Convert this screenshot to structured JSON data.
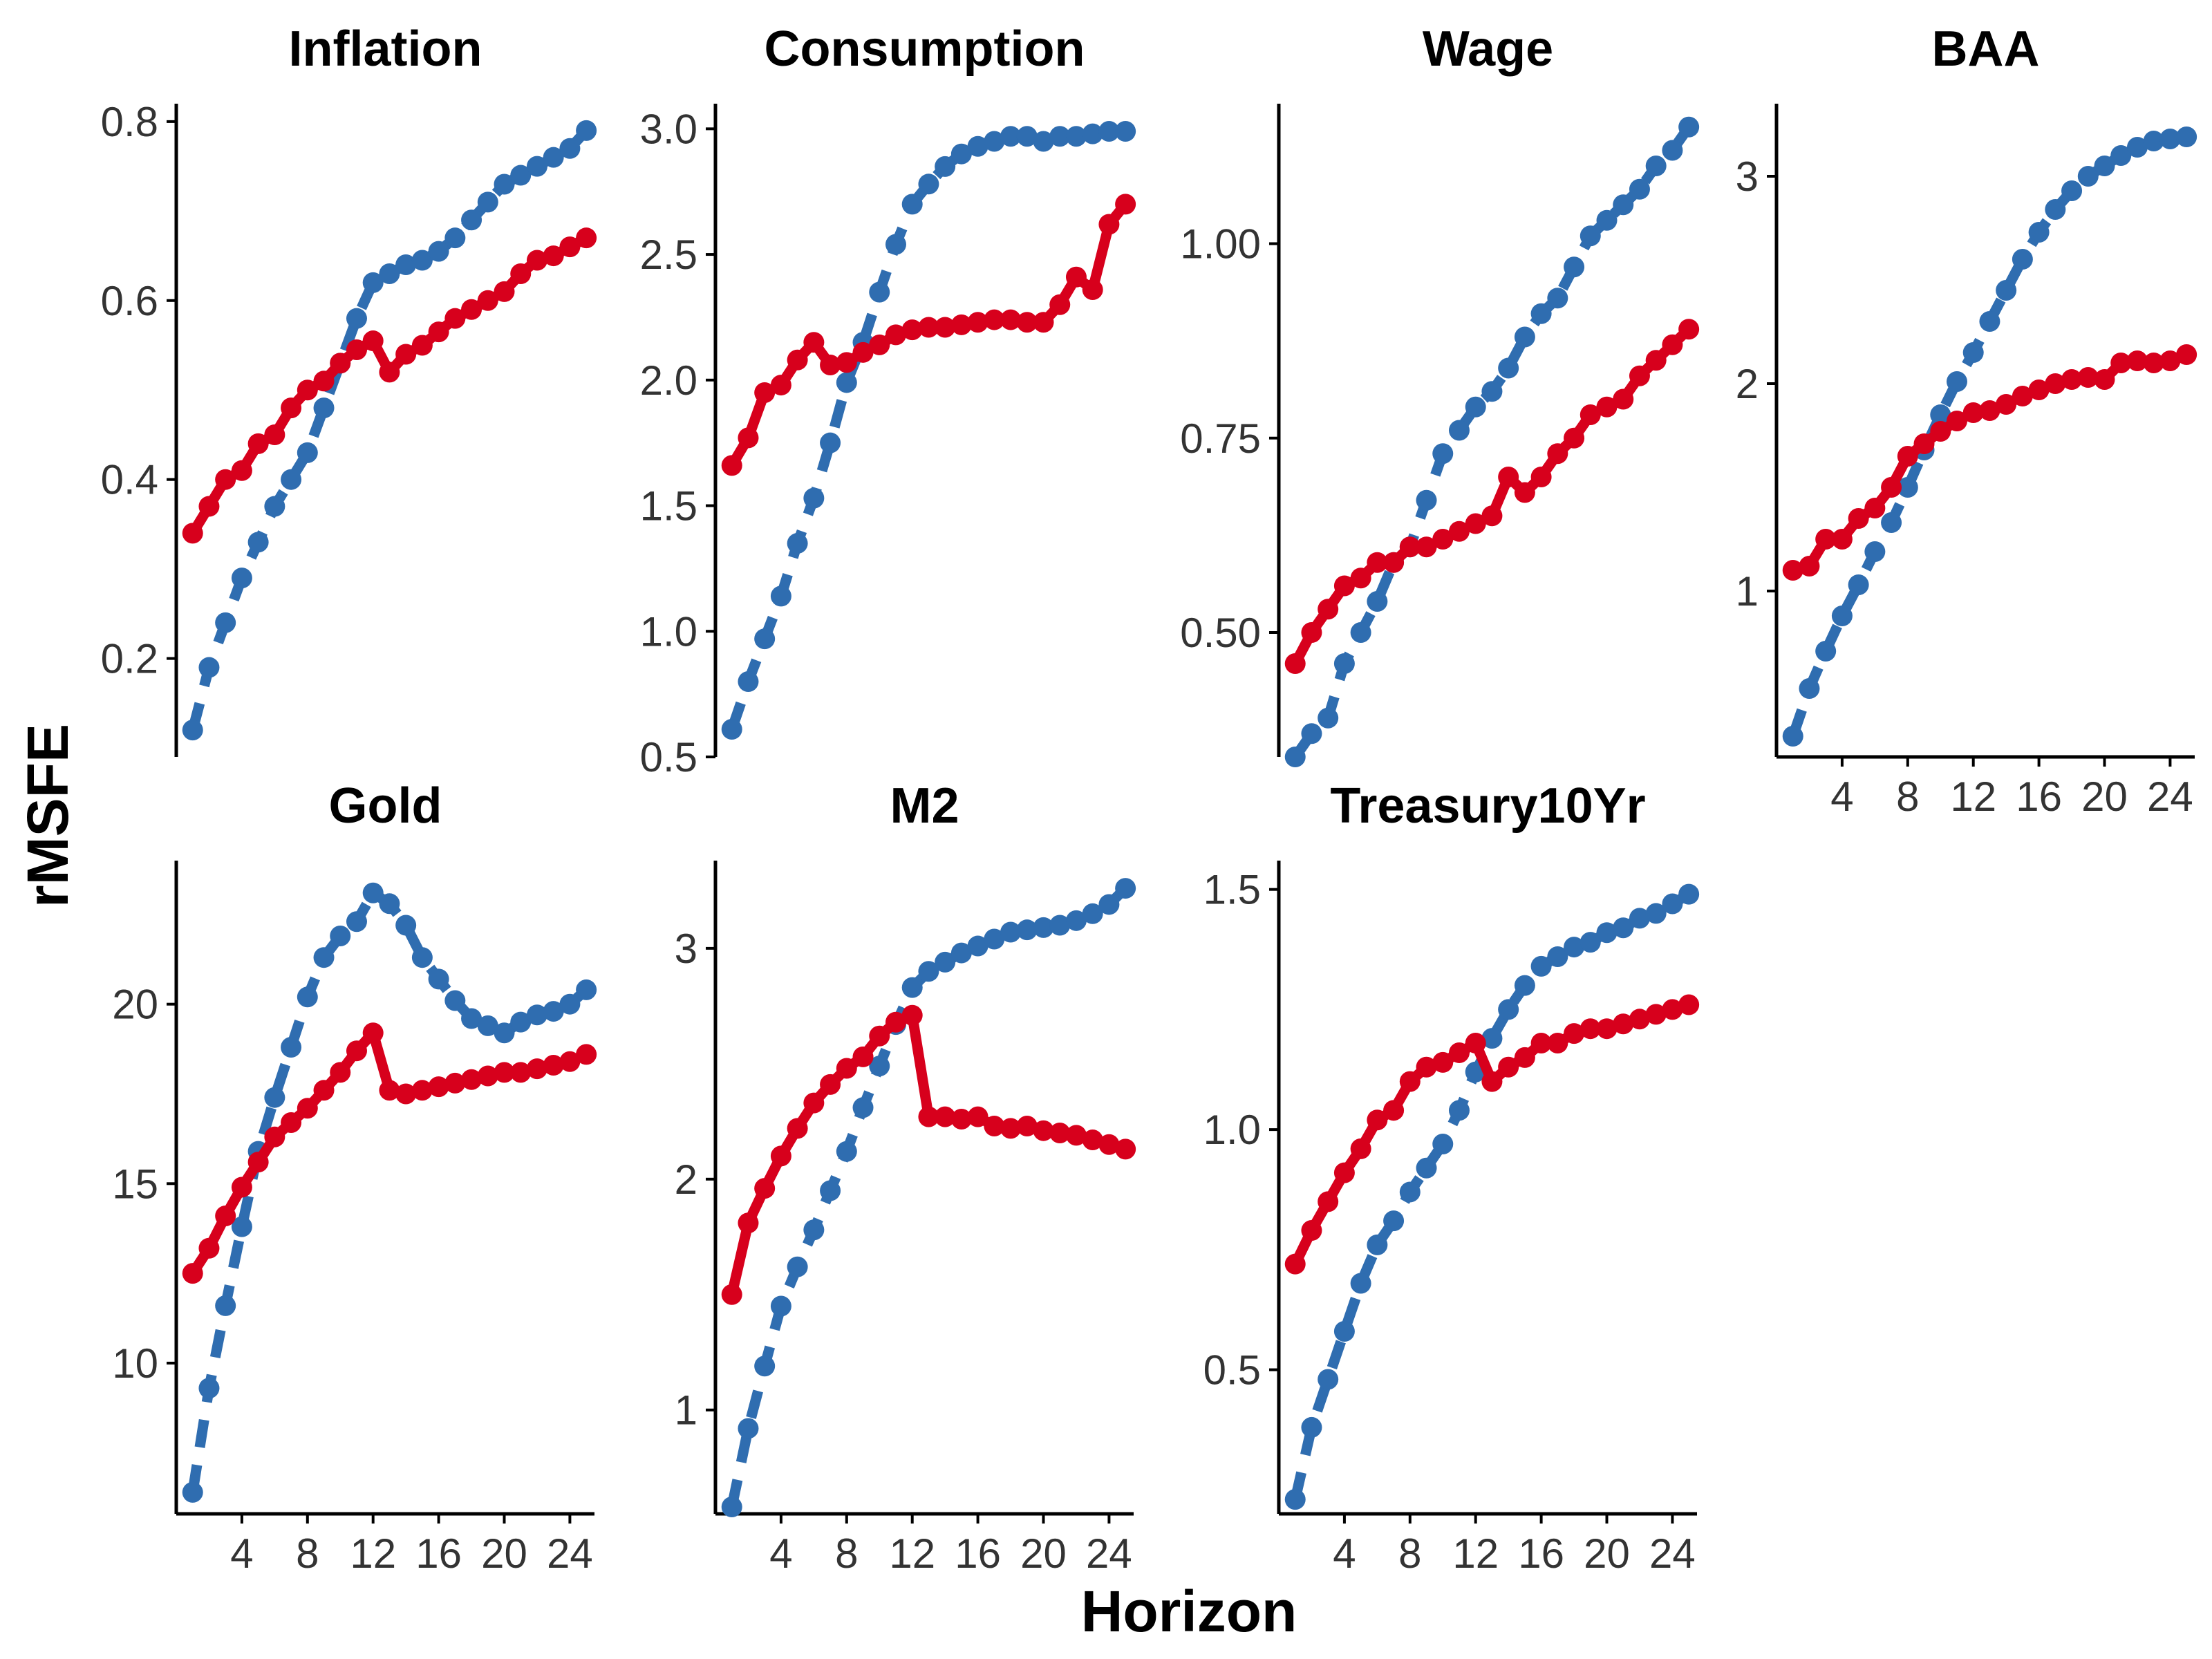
{
  "figure": {
    "xlabel": "Horizon",
    "ylabel": "rMSFE"
  },
  "colors": {
    "blue": "#2f6db0",
    "red": "#d7001c"
  },
  "chart_data": [
    {
      "type": "line",
      "title": "Inflation",
      "x": [
        1,
        2,
        3,
        4,
        5,
        6,
        7,
        8,
        9,
        10,
        11,
        12,
        13,
        14,
        15,
        16,
        17,
        18,
        19,
        20,
        21,
        22,
        23,
        24,
        25
      ],
      "xlim": [
        0,
        25.5
      ],
      "xticks": [
        4,
        8,
        12,
        16,
        20,
        24
      ],
      "show_xaxis": false,
      "ylim": [
        0.09,
        0.82
      ],
      "yticks": [
        0.2,
        0.4,
        0.6,
        0.8
      ],
      "yticklabels": [
        "0.2",
        "0.4",
        "0.6",
        "0.8"
      ],
      "series": [
        {
          "style": "dashed",
          "color": "#2f6db0",
          "values": [
            0.12,
            0.19,
            0.24,
            0.29,
            0.33,
            0.37,
            0.4,
            0.43,
            0.48,
            0.53,
            0.58,
            0.62,
            0.63,
            0.64,
            0.645,
            0.655,
            0.67,
            0.69,
            0.71,
            0.73,
            0.74,
            0.75,
            0.76,
            0.77,
            0.79
          ]
        },
        {
          "style": "solid",
          "color": "#d7001c",
          "values": [
            0.34,
            0.37,
            0.4,
            0.41,
            0.44,
            0.45,
            0.48,
            0.5,
            0.51,
            0.53,
            0.545,
            0.555,
            0.52,
            0.54,
            0.55,
            0.565,
            0.58,
            0.59,
            0.6,
            0.61,
            0.63,
            0.645,
            0.65,
            0.66,
            0.67
          ]
        }
      ]
    },
    {
      "type": "line",
      "title": "Consumption",
      "x": [
        1,
        2,
        3,
        4,
        5,
        6,
        7,
        8,
        9,
        10,
        11,
        12,
        13,
        14,
        15,
        16,
        17,
        18,
        19,
        20,
        21,
        22,
        23,
        24,
        25
      ],
      "xlim": [
        0,
        25.5
      ],
      "xticks": [
        4,
        8,
        12,
        16,
        20,
        24
      ],
      "show_xaxis": false,
      "ylim": [
        0.5,
        3.1
      ],
      "yticks": [
        0.5,
        1.0,
        1.5,
        2.0,
        2.5,
        3.0
      ],
      "yticklabels": [
        "0.5",
        "1.0",
        "1.5",
        "2.0",
        "2.5",
        "3.0"
      ],
      "series": [
        {
          "style": "dashed",
          "color": "#2f6db0",
          "values": [
            0.61,
            0.8,
            0.97,
            1.14,
            1.35,
            1.53,
            1.75,
            1.99,
            2.15,
            2.35,
            2.54,
            2.7,
            2.78,
            2.85,
            2.9,
            2.93,
            2.95,
            2.97,
            2.97,
            2.95,
            2.97,
            2.97,
            2.98,
            2.99,
            2.99
          ]
        },
        {
          "style": "solid",
          "color": "#d7001c",
          "values": [
            1.66,
            1.77,
            1.95,
            1.98,
            2.08,
            2.15,
            2.06,
            2.07,
            2.11,
            2.14,
            2.18,
            2.2,
            2.21,
            2.21,
            2.22,
            2.23,
            2.24,
            2.24,
            2.23,
            2.23,
            2.3,
            2.41,
            2.36,
            2.62,
            2.7
          ]
        }
      ]
    },
    {
      "type": "line",
      "title": "Wage",
      "x": [
        1,
        2,
        3,
        4,
        5,
        6,
        7,
        8,
        9,
        10,
        11,
        12,
        13,
        14,
        15,
        16,
        17,
        18,
        19,
        20,
        21,
        22,
        23,
        24,
        25
      ],
      "xlim": [
        0,
        25.5
      ],
      "xticks": [
        4,
        8,
        12,
        16,
        20,
        24
      ],
      "show_xaxis": false,
      "ylim": [
        0.34,
        1.18
      ],
      "yticks": [
        0.5,
        0.75,
        1.0
      ],
      "yticklabels": [
        "0.50",
        "0.75",
        "1.00"
      ],
      "series": [
        {
          "style": "dashed",
          "color": "#2f6db0",
          "values": [
            0.34,
            0.37,
            0.39,
            0.46,
            0.5,
            0.54,
            0.59,
            0.61,
            0.67,
            0.73,
            0.76,
            0.79,
            0.81,
            0.84,
            0.88,
            0.91,
            0.93,
            0.97,
            1.01,
            1.03,
            1.05,
            1.07,
            1.1,
            1.12,
            1.15
          ]
        },
        {
          "style": "solid",
          "color": "#d7001c",
          "values": [
            0.46,
            0.5,
            0.53,
            0.56,
            0.57,
            0.59,
            0.59,
            0.61,
            0.61,
            0.62,
            0.63,
            0.64,
            0.65,
            0.7,
            0.68,
            0.7,
            0.73,
            0.75,
            0.78,
            0.79,
            0.8,
            0.83,
            0.85,
            0.87,
            0.89
          ]
        }
      ]
    },
    {
      "type": "line",
      "title": "BAA",
      "x": [
        1,
        2,
        3,
        4,
        5,
        6,
        7,
        8,
        9,
        10,
        11,
        12,
        13,
        14,
        15,
        16,
        17,
        18,
        19,
        20,
        21,
        22,
        23,
        24,
        25
      ],
      "xlim": [
        0,
        25.5
      ],
      "xticks": [
        4,
        8,
        12,
        16,
        20,
        24
      ],
      "xticklabels": [
        "4",
        "8",
        "12",
        "16",
        "20",
        "24"
      ],
      "show_xaxis": true,
      "ylim": [
        0.2,
        3.35
      ],
      "yticks": [
        1,
        2,
        3
      ],
      "yticklabels": [
        "1",
        "2",
        "3"
      ],
      "series": [
        {
          "style": "dashed",
          "color": "#2f6db0",
          "values": [
            0.3,
            0.53,
            0.71,
            0.88,
            1.03,
            1.19,
            1.33,
            1.5,
            1.68,
            1.85,
            2.01,
            2.15,
            2.3,
            2.45,
            2.6,
            2.73,
            2.84,
            2.93,
            3.0,
            3.05,
            3.1,
            3.14,
            3.17,
            3.18,
            3.19
          ]
        },
        {
          "style": "solid",
          "color": "#d7001c",
          "values": [
            1.1,
            1.12,
            1.25,
            1.25,
            1.35,
            1.4,
            1.5,
            1.65,
            1.71,
            1.77,
            1.82,
            1.86,
            1.87,
            1.9,
            1.94,
            1.97,
            2.0,
            2.02,
            2.03,
            2.02,
            2.1,
            2.11,
            2.1,
            2.11,
            2.14
          ]
        }
      ]
    },
    {
      "type": "line",
      "title": "Gold",
      "x": [
        1,
        2,
        3,
        4,
        5,
        6,
        7,
        8,
        9,
        10,
        11,
        12,
        13,
        14,
        15,
        16,
        17,
        18,
        19,
        20,
        21,
        22,
        23,
        24,
        25
      ],
      "xlim": [
        0,
        25.5
      ],
      "xticks": [
        4,
        8,
        12,
        16,
        20,
        24
      ],
      "xticklabels": [
        "4",
        "8",
        "12",
        "16",
        "20",
        "24"
      ],
      "show_xaxis": true,
      "ylim": [
        5.8,
        24.0
      ],
      "yticks": [
        10,
        15,
        20
      ],
      "yticklabels": [
        "10",
        "15",
        "20"
      ],
      "series": [
        {
          "style": "dashed",
          "color": "#2f6db0",
          "values": [
            6.4,
            9.3,
            11.6,
            13.8,
            15.9,
            17.4,
            18.8,
            20.2,
            21.3,
            21.9,
            22.3,
            23.1,
            22.8,
            22.2,
            21.3,
            20.7,
            20.1,
            19.6,
            19.4,
            19.2,
            19.5,
            19.7,
            19.8,
            20.0,
            20.4
          ]
        },
        {
          "style": "solid",
          "color": "#d7001c",
          "values": [
            12.5,
            13.2,
            14.1,
            14.9,
            15.6,
            16.3,
            16.7,
            17.1,
            17.6,
            18.1,
            18.7,
            19.2,
            17.6,
            17.5,
            17.6,
            17.7,
            17.8,
            17.9,
            18.0,
            18.1,
            18.1,
            18.2,
            18.3,
            18.4,
            18.6
          ]
        }
      ]
    },
    {
      "type": "line",
      "title": "M2",
      "x": [
        1,
        2,
        3,
        4,
        5,
        6,
        7,
        8,
        9,
        10,
        11,
        12,
        13,
        14,
        15,
        16,
        17,
        18,
        19,
        20,
        21,
        22,
        23,
        24,
        25
      ],
      "xlim": [
        0,
        25.5
      ],
      "xticks": [
        4,
        8,
        12,
        16,
        20,
        24
      ],
      "xticklabels": [
        "4",
        "8",
        "12",
        "16",
        "20",
        "24"
      ],
      "show_xaxis": true,
      "ylim": [
        0.55,
        3.38
      ],
      "yticks": [
        1,
        2,
        3
      ],
      "yticklabels": [
        "1",
        "2",
        "3"
      ],
      "series": [
        {
          "style": "dashed",
          "color": "#2f6db0",
          "values": [
            0.58,
            0.92,
            1.19,
            1.45,
            1.62,
            1.78,
            1.95,
            2.12,
            2.31,
            2.49,
            2.67,
            2.83,
            2.9,
            2.94,
            2.98,
            3.01,
            3.04,
            3.07,
            3.08,
            3.09,
            3.1,
            3.12,
            3.15,
            3.19,
            3.26
          ]
        },
        {
          "style": "solid",
          "color": "#d7001c",
          "values": [
            1.5,
            1.81,
            1.96,
            2.1,
            2.22,
            2.33,
            2.41,
            2.48,
            2.53,
            2.62,
            2.68,
            2.71,
            2.27,
            2.27,
            2.26,
            2.27,
            2.23,
            2.22,
            2.23,
            2.21,
            2.2,
            2.19,
            2.17,
            2.15,
            2.13
          ]
        }
      ]
    },
    {
      "type": "line",
      "title": "Treasury10Yr",
      "x": [
        1,
        2,
        3,
        4,
        5,
        6,
        7,
        8,
        9,
        10,
        11,
        12,
        13,
        14,
        15,
        16,
        17,
        18,
        19,
        20,
        21,
        22,
        23,
        24,
        25
      ],
      "xlim": [
        0,
        25.5
      ],
      "xticks": [
        4,
        8,
        12,
        16,
        20,
        24
      ],
      "xticklabels": [
        "4",
        "8",
        "12",
        "16",
        "20",
        "24"
      ],
      "show_xaxis": true,
      "ylim": [
        0.2,
        1.56
      ],
      "yticks": [
        0.5,
        1.0,
        1.5
      ],
      "yticklabels": [
        "0.5",
        "1.0",
        "1.5"
      ],
      "series": [
        {
          "style": "dashed",
          "color": "#2f6db0",
          "values": [
            0.23,
            0.38,
            0.48,
            0.58,
            0.68,
            0.76,
            0.81,
            0.87,
            0.92,
            0.97,
            1.04,
            1.12,
            1.19,
            1.25,
            1.3,
            1.34,
            1.36,
            1.38,
            1.39,
            1.41,
            1.42,
            1.44,
            1.45,
            1.47,
            1.49
          ]
        },
        {
          "style": "solid",
          "color": "#d7001c",
          "values": [
            0.72,
            0.79,
            0.85,
            0.91,
            0.96,
            1.02,
            1.04,
            1.1,
            1.13,
            1.14,
            1.16,
            1.18,
            1.1,
            1.13,
            1.15,
            1.18,
            1.18,
            1.2,
            1.21,
            1.21,
            1.22,
            1.23,
            1.24,
            1.25,
            1.26
          ]
        }
      ]
    }
  ]
}
